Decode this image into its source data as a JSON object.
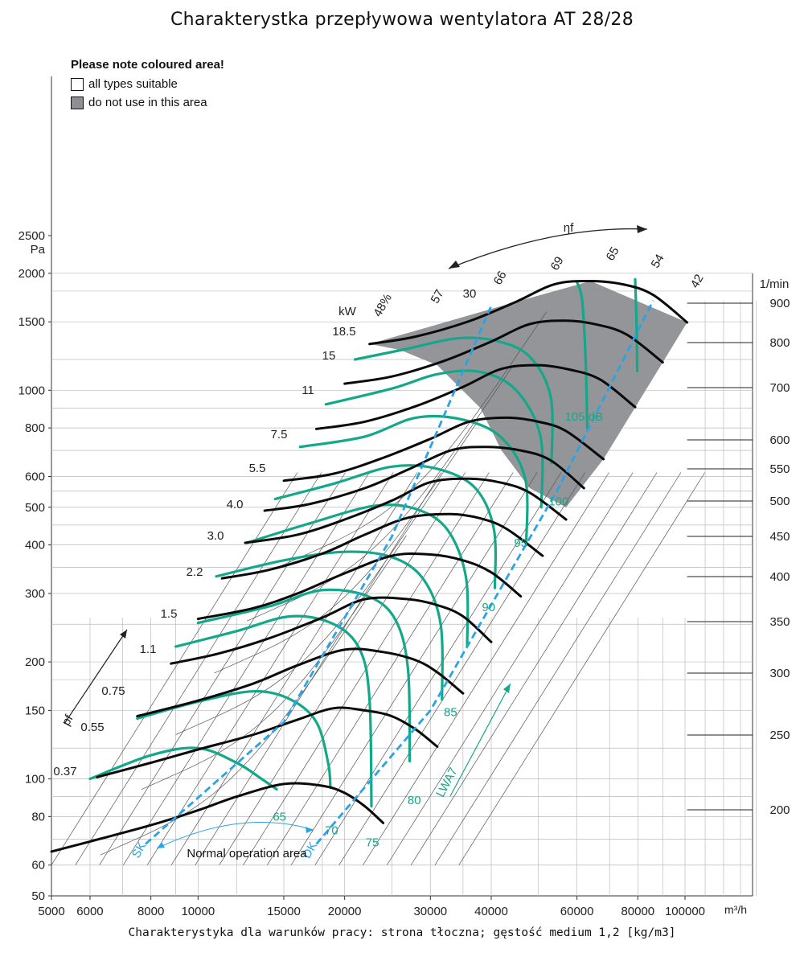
{
  "title": "Charakterystka przepływowa wentylatora AT 28/28",
  "footer": "Charakterystyka dla warunków pracy: strona tłoczna; gęstość medium 1,2 [kg/m3]",
  "legend": {
    "title": "Please note coloured area!",
    "items": [
      {
        "label": "all types suitable",
        "color": "#ffffff"
      },
      {
        "label": "do not use in this area",
        "color": "#8d8f93"
      }
    ]
  },
  "chart_data": {
    "type": "line",
    "x_scale": "log",
    "y_scale": "log",
    "x_unit": "m³/h",
    "y_unit": "Pa",
    "x_ticks": [
      5000,
      6000,
      8000,
      10000,
      15000,
      20000,
      30000,
      40000,
      60000,
      80000,
      100000
    ],
    "x_tick_labels": [
      "5000",
      "6000",
      "8000",
      "10000",
      "15000",
      "20000",
      "30000",
      "40000",
      "60000",
      "80000",
      "100000"
    ],
    "y_ticks": [
      50,
      60,
      80,
      100,
      150,
      200,
      300,
      400,
      500,
      600,
      800,
      1000,
      1500,
      2000,
      2500
    ],
    "y_tick_labels": [
      "50",
      "60",
      "80",
      "100",
      "150",
      "200",
      "300",
      "400",
      "500",
      "600",
      "800",
      "1000",
      "1500",
      "2000",
      "2500"
    ],
    "speed_unit": "1/min",
    "speed_labels": [
      "900",
      "800",
      "700",
      "600",
      "550",
      "500",
      "450",
      "400",
      "350",
      "300",
      "250",
      "200"
    ],
    "speed_curves": [
      {
        "rpm": 200,
        "x": [
          5000,
          6000,
          8000,
          10000,
          12000,
          15000,
          18000,
          20000,
          22000,
          24000
        ],
        "y": [
          65,
          69,
          76,
          83,
          90,
          97,
          96,
          92,
          85,
          77
        ]
      },
      {
        "rpm": 250,
        "x": [
          6200,
          8000,
          10000,
          13000,
          16000,
          19000,
          22000,
          25000,
          28000,
          31000
        ],
        "y": [
          101,
          110,
          119,
          130,
          142,
          152,
          150,
          145,
          134,
          121
        ]
      },
      {
        "rpm": 300,
        "x": [
          7500,
          10000,
          13000,
          16000,
          20000,
          24000,
          28000,
          31000,
          35000
        ],
        "y": [
          145,
          159,
          176,
          196,
          215,
          212,
          202,
          188,
          166
        ]
      },
      {
        "rpm": 350,
        "x": [
          8800,
          11000,
          14000,
          18000,
          22000,
          27000,
          31000,
          35000,
          40000
        ],
        "y": [
          198,
          210,
          230,
          260,
          290,
          290,
          280,
          262,
          225
        ]
      },
      {
        "rpm": 400,
        "x": [
          10000,
          13000,
          16000,
          20000,
          25000,
          30000,
          35000,
          40000,
          46000
        ],
        "y": [
          258,
          275,
          300,
          338,
          375,
          378,
          365,
          340,
          295
        ]
      },
      {
        "rpm": 450,
        "x": [
          11200,
          14000,
          18000,
          22000,
          27000,
          33000,
          38000,
          43000,
          51000
        ],
        "y": [
          328,
          345,
          380,
          425,
          470,
          480,
          468,
          440,
          375
        ]
      },
      {
        "rpm": 500,
        "x": [
          12500,
          16000,
          20000,
          25000,
          30000,
          36000,
          42000,
          48000,
          57000
        ],
        "y": [
          405,
          425,
          465,
          520,
          580,
          592,
          578,
          545,
          465
        ]
      },
      {
        "rpm": 550,
        "x": [
          13700,
          17000,
          22000,
          27000,
          33000,
          39000,
          46000,
          53000,
          62000
        ],
        "y": [
          490,
          510,
          560,
          625,
          700,
          715,
          700,
          660,
          560
        ]
      },
      {
        "rpm": 600,
        "x": [
          15000,
          19000,
          24000,
          30000,
          36000,
          43000,
          50000,
          57000,
          68000
        ],
        "y": [
          585,
          610,
          670,
          750,
          830,
          850,
          830,
          785,
          665
        ]
      },
      {
        "rpm": 700,
        "x": [
          17500,
          22000,
          28000,
          35000,
          42000,
          50000,
          58000,
          67000,
          79000
        ],
        "y": [
          795,
          830,
          910,
          1020,
          1135,
          1160,
          1130,
          1065,
          905
        ]
      },
      {
        "rpm": 800,
        "x": [
          20000,
          25000,
          32000,
          40000,
          48000,
          57000,
          66000,
          76000,
          90000
        ],
        "y": [
          1040,
          1085,
          1190,
          1335,
          1480,
          1510,
          1475,
          1390,
          1180
        ]
      },
      {
        "rpm": 900,
        "x": [
          22500,
          28000,
          36000,
          45000,
          54000,
          64000,
          75000,
          86000,
          101000
        ],
        "y": [
          1315,
          1375,
          1505,
          1690,
          1875,
          1910,
          1870,
          1760,
          1495
        ]
      }
    ],
    "sound_curves": [
      {
        "label": "65 dB",
        "x": [
          6000,
          8000,
          10000,
          12000,
          13500,
          14500
        ],
        "y": [
          100,
          115,
          120,
          110,
          100,
          94
        ]
      },
      {
        "label": "70 dB",
        "x": [
          7500,
          10000,
          13000,
          15500,
          17500,
          18500,
          18700
        ],
        "y": [
          143,
          158,
          168,
          160,
          140,
          110,
          95
        ]
      },
      {
        "label": "75 dB",
        "x": [
          9000,
          12000,
          15500,
          19000,
          21500,
          22500,
          22700
        ],
        "y": [
          219,
          240,
          262,
          250,
          215,
          160,
          85
        ]
      },
      {
        "label": "80 dB",
        "x": [
          10000,
          14000,
          18000,
          22500,
          25500,
          27000,
          27200
        ],
        "y": [
          252,
          278,
          306,
          294,
          255,
          190,
          111
        ]
      },
      {
        "label": "85 dB",
        "x": [
          10900,
          15000,
          20000,
          25000,
          29000,
          31500,
          31700
        ],
        "y": [
          332,
          365,
          384,
          372,
          327,
          250,
          160
        ]
      },
      {
        "label": "90 dB",
        "x": [
          12600,
          17000,
          23000,
          28000,
          32500,
          35500,
          35700
        ],
        "y": [
          405,
          455,
          504,
          495,
          438,
          330,
          220
        ]
      },
      {
        "label": "95 dB",
        "x": [
          14400,
          19000,
          25000,
          31000,
          37000,
          40500,
          40700
        ],
        "y": [
          525,
          575,
          636,
          628,
          562,
          440,
          310
        ]
      },
      {
        "label": "100 dB",
        "x": [
          16200,
          22000,
          28000,
          35000,
          42000,
          47000,
          47200
        ],
        "y": [
          715,
          760,
          850,
          840,
          755,
          590,
          400
        ]
      },
      {
        "label": "105 dB",
        "x": [
          18300,
          25000,
          31000,
          38000,
          45000,
          50500,
          50700
        ],
        "y": [
          920,
          1010,
          1100,
          1115,
          1000,
          760,
          500
        ]
      },
      {
        "label": "",
        "x": [
          21000,
          27000,
          34000,
          41000,
          48000,
          53000,
          53200
        ],
        "y": [
          1200,
          1280,
          1360,
          1340,
          1220,
          960,
          650
        ]
      },
      {
        "label": "",
        "x": [
          60000,
          61500,
          62500,
          63000
        ],
        "y": [
          1900,
          1700,
          1200,
          800
        ]
      },
      {
        "label": "",
        "x": [
          79000,
          79500,
          79800
        ],
        "y": [
          1930,
          1500,
          1120
        ]
      }
    ],
    "power_labels_kW": [
      "18.5",
      "15",
      "11",
      "7.5",
      "5.5",
      "4.0",
      "3.0",
      "2.2",
      "1.5",
      "1.1",
      "0.75",
      "0.55",
      "0.37"
    ],
    "power_axis_label": "kW",
    "efficiency_labels": [
      "48%",
      "57",
      "66",
      "69",
      "65",
      "54",
      "42"
    ],
    "efficiency_axis_label": "ηf",
    "extra_labels": [
      "30"
    ],
    "operating_limits": [
      {
        "name": "SK",
        "x": [
          7800,
          15000,
          25000,
          40000
        ],
        "y": [
          68,
          140,
          420,
          1650
        ]
      },
      {
        "name": "DK",
        "x": [
          17500,
          30000,
          55000,
          86000
        ],
        "y": [
          68,
          150,
          560,
          1700
        ]
      }
    ],
    "annotations": {
      "normal_operation": "Normal operation area",
      "pressure_axis": "pf",
      "sound_axis": "LWA7"
    },
    "forbidden_region": {
      "x": [
        22500,
        45000,
        64000,
        101000,
        90000,
        68000,
        57000,
        48000,
        42000,
        38000,
        31000,
        26000,
        22500
      ],
      "y": [
        1315,
        1690,
        1910,
        1495,
        1180,
        665,
        500,
        560,
        700,
        900,
        1160,
        1270,
        1315
      ]
    }
  }
}
